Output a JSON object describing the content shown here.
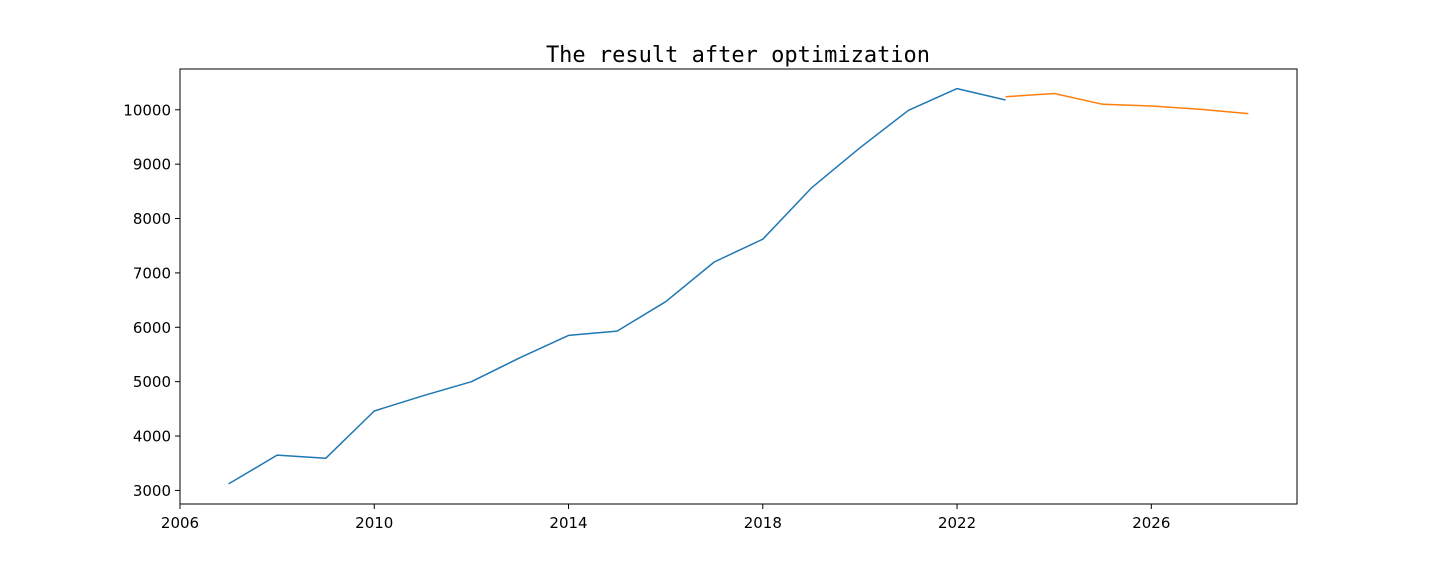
{
  "chart_data": {
    "type": "line",
    "title": "The result after optimization",
    "xlabel": "",
    "ylabel": "",
    "xlim": [
      2006,
      2029
    ],
    "ylim": [
      2750,
      10750
    ],
    "x_ticks": [
      2006,
      2010,
      2014,
      2018,
      2022,
      2026
    ],
    "x_tick_labels": [
      "2006",
      "2010",
      "2014",
      "2018",
      "2022",
      "2026"
    ],
    "y_ticks": [
      3000,
      4000,
      5000,
      6000,
      7000,
      8000,
      9000,
      10000
    ],
    "y_tick_labels": [
      "3000",
      "4000",
      "5000",
      "6000",
      "7000",
      "8000",
      "9000",
      "10000"
    ],
    "grid": false,
    "legend": "none",
    "series": [
      {
        "color": "#1f77b4",
        "x": [
          2007,
          2008,
          2009,
          2010,
          2011,
          2012,
          2013,
          2014,
          2015,
          2016,
          2017,
          2018,
          2019,
          2020,
          2021,
          2022,
          2023
        ],
        "y": [
          3120,
          3650,
          3590,
          4460,
          4740,
          5000,
          5440,
          5850,
          5930,
          6470,
          7200,
          7620,
          8560,
          9300,
          9990,
          10390,
          10180
        ]
      },
      {
        "color": "#ff7f0e",
        "x": [
          2023,
          2024,
          2025,
          2026,
          2027,
          2028
        ],
        "y": [
          10240,
          10300,
          10100,
          10070,
          10010,
          9930
        ]
      }
    ]
  }
}
